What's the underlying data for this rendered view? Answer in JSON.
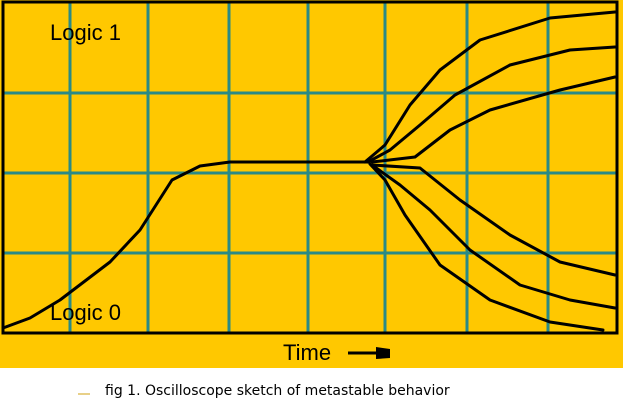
{
  "labels": {
    "logic_1": "Logic 1",
    "logic_0": "Logic 0",
    "time": "Time"
  },
  "caption": "fig 1. Oscilloscope sketch of metastable behavior"
}
